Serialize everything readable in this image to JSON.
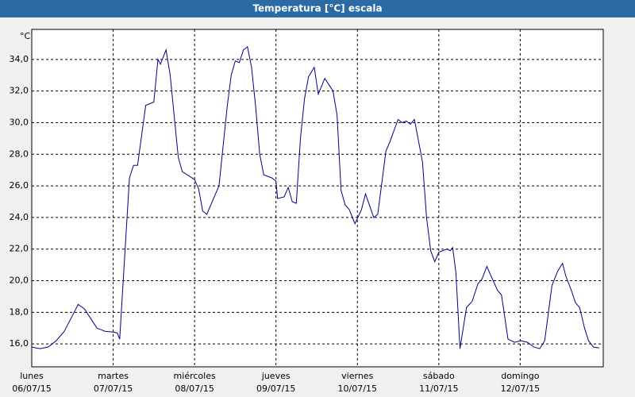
{
  "chart_data": {
    "type": "line",
    "title": "Temperatura [°C] escala",
    "ylabel": "°C",
    "color": "#00008b",
    "x": [
      0,
      0.1,
      0.2,
      0.3,
      0.4,
      0.5,
      0.57,
      0.65,
      0.7,
      0.8,
      0.9,
      1.0,
      1.05,
      1.08,
      1.1,
      1.2,
      1.25,
      1.3,
      1.4,
      1.5,
      1.55,
      1.58,
      1.65,
      1.7,
      1.8,
      1.85,
      2.0,
      2.05,
      2.1,
      2.15,
      2.3,
      2.4,
      2.45,
      2.5,
      2.55,
      2.6,
      2.65,
      2.7,
      2.75,
      2.8,
      2.85,
      2.95,
      3.0,
      3.02,
      3.1,
      3.15,
      3.2,
      3.25,
      3.3,
      3.35,
      3.4,
      3.47,
      3.52,
      3.6,
      3.7,
      3.75,
      3.8,
      3.85,
      3.9,
      3.97,
      4.05,
      4.1,
      4.2,
      4.25,
      4.35,
      4.4,
      4.5,
      4.55,
      4.6,
      4.65,
      4.7,
      4.8,
      4.85,
      4.9,
      4.95,
      5.0,
      5.1,
      5.14,
      5.17,
      5.21,
      5.26,
      5.34,
      5.41,
      5.48,
      5.53,
      5.59,
      5.65,
      5.72,
      5.77,
      5.85,
      5.93,
      6.01,
      6.09,
      6.17,
      6.24,
      6.3,
      6.39,
      6.46,
      6.52,
      6.56,
      6.62,
      6.68,
      6.73,
      6.79,
      6.84,
      6.9,
      6.97
    ],
    "values": [
      15.8,
      15.7,
      15.8,
      16.2,
      16.8,
      17.8,
      18.5,
      18.2,
      17.8,
      17.0,
      16.8,
      16.75,
      16.7,
      16.3,
      18,
      26.5,
      27.3,
      27.3,
      31.1,
      31.3,
      34.0,
      33.7,
      34.6,
      33,
      27.8,
      26.9,
      26.4,
      25.8,
      24.4,
      24.2,
      26.0,
      31,
      33,
      33.9,
      33.8,
      34.6,
      34.8,
      33.5,
      31,
      28,
      26.7,
      26.5,
      26.3,
      25.2,
      25.3,
      25.9,
      25,
      24.9,
      29,
      31.5,
      32.9,
      33.5,
      31.8,
      32.8,
      32,
      30.5,
      25.7,
      24.8,
      24.5,
      23.6,
      24.5,
      25.5,
      24,
      24.2,
      28.2,
      28.8,
      30.2,
      30,
      30.1,
      29.9,
      30.2,
      27.5,
      24,
      21.9,
      21.2,
      21.8,
      22.0,
      21.9,
      22.1,
      20.5,
      15.7,
      18.3,
      18.7,
      19.8,
      20.1,
      20.9,
      20.2,
      19.4,
      19.1,
      16.3,
      16.1,
      16.2,
      16.1,
      15.8,
      15.7,
      16.2,
      19.7,
      20.6,
      21.1,
      20.3,
      19.5,
      18.6,
      18.3,
      17.0,
      16.2,
      15.8,
      15.75
    ],
    "xlim": [
      0,
      7.02
    ],
    "xticks": [
      {
        "value": 0,
        "label": [
          "lunes",
          "06/07/15"
        ]
      },
      {
        "value": 1,
        "label": [
          "martes",
          "07/07/15"
        ]
      },
      {
        "value": 2,
        "label": [
          "miércoles",
          "08/07/15"
        ]
      },
      {
        "value": 3,
        "label": [
          "jueves",
          "09/07/15"
        ]
      },
      {
        "value": 4,
        "label": [
          "viernes",
          "10/07/15"
        ]
      },
      {
        "value": 5,
        "label": [
          "sábado",
          "11/07/15"
        ]
      },
      {
        "value": 6,
        "label": [
          "domingo",
          "12/07/15"
        ]
      }
    ],
    "ylim": [
      14.55,
      35.9
    ],
    "yticks": [
      {
        "value": 16,
        "label": "16,0"
      },
      {
        "value": 18,
        "label": "18,0"
      },
      {
        "value": 20,
        "label": "20,0"
      },
      {
        "value": 22,
        "label": "22,0"
      },
      {
        "value": 24,
        "label": "24,0"
      },
      {
        "value": 26,
        "label": "26,0"
      },
      {
        "value": 28,
        "label": "28,0"
      },
      {
        "value": 30,
        "label": "30,0"
      },
      {
        "value": 32,
        "label": "32,0"
      },
      {
        "value": 34,
        "label": "34,0"
      }
    ],
    "grid": true
  }
}
